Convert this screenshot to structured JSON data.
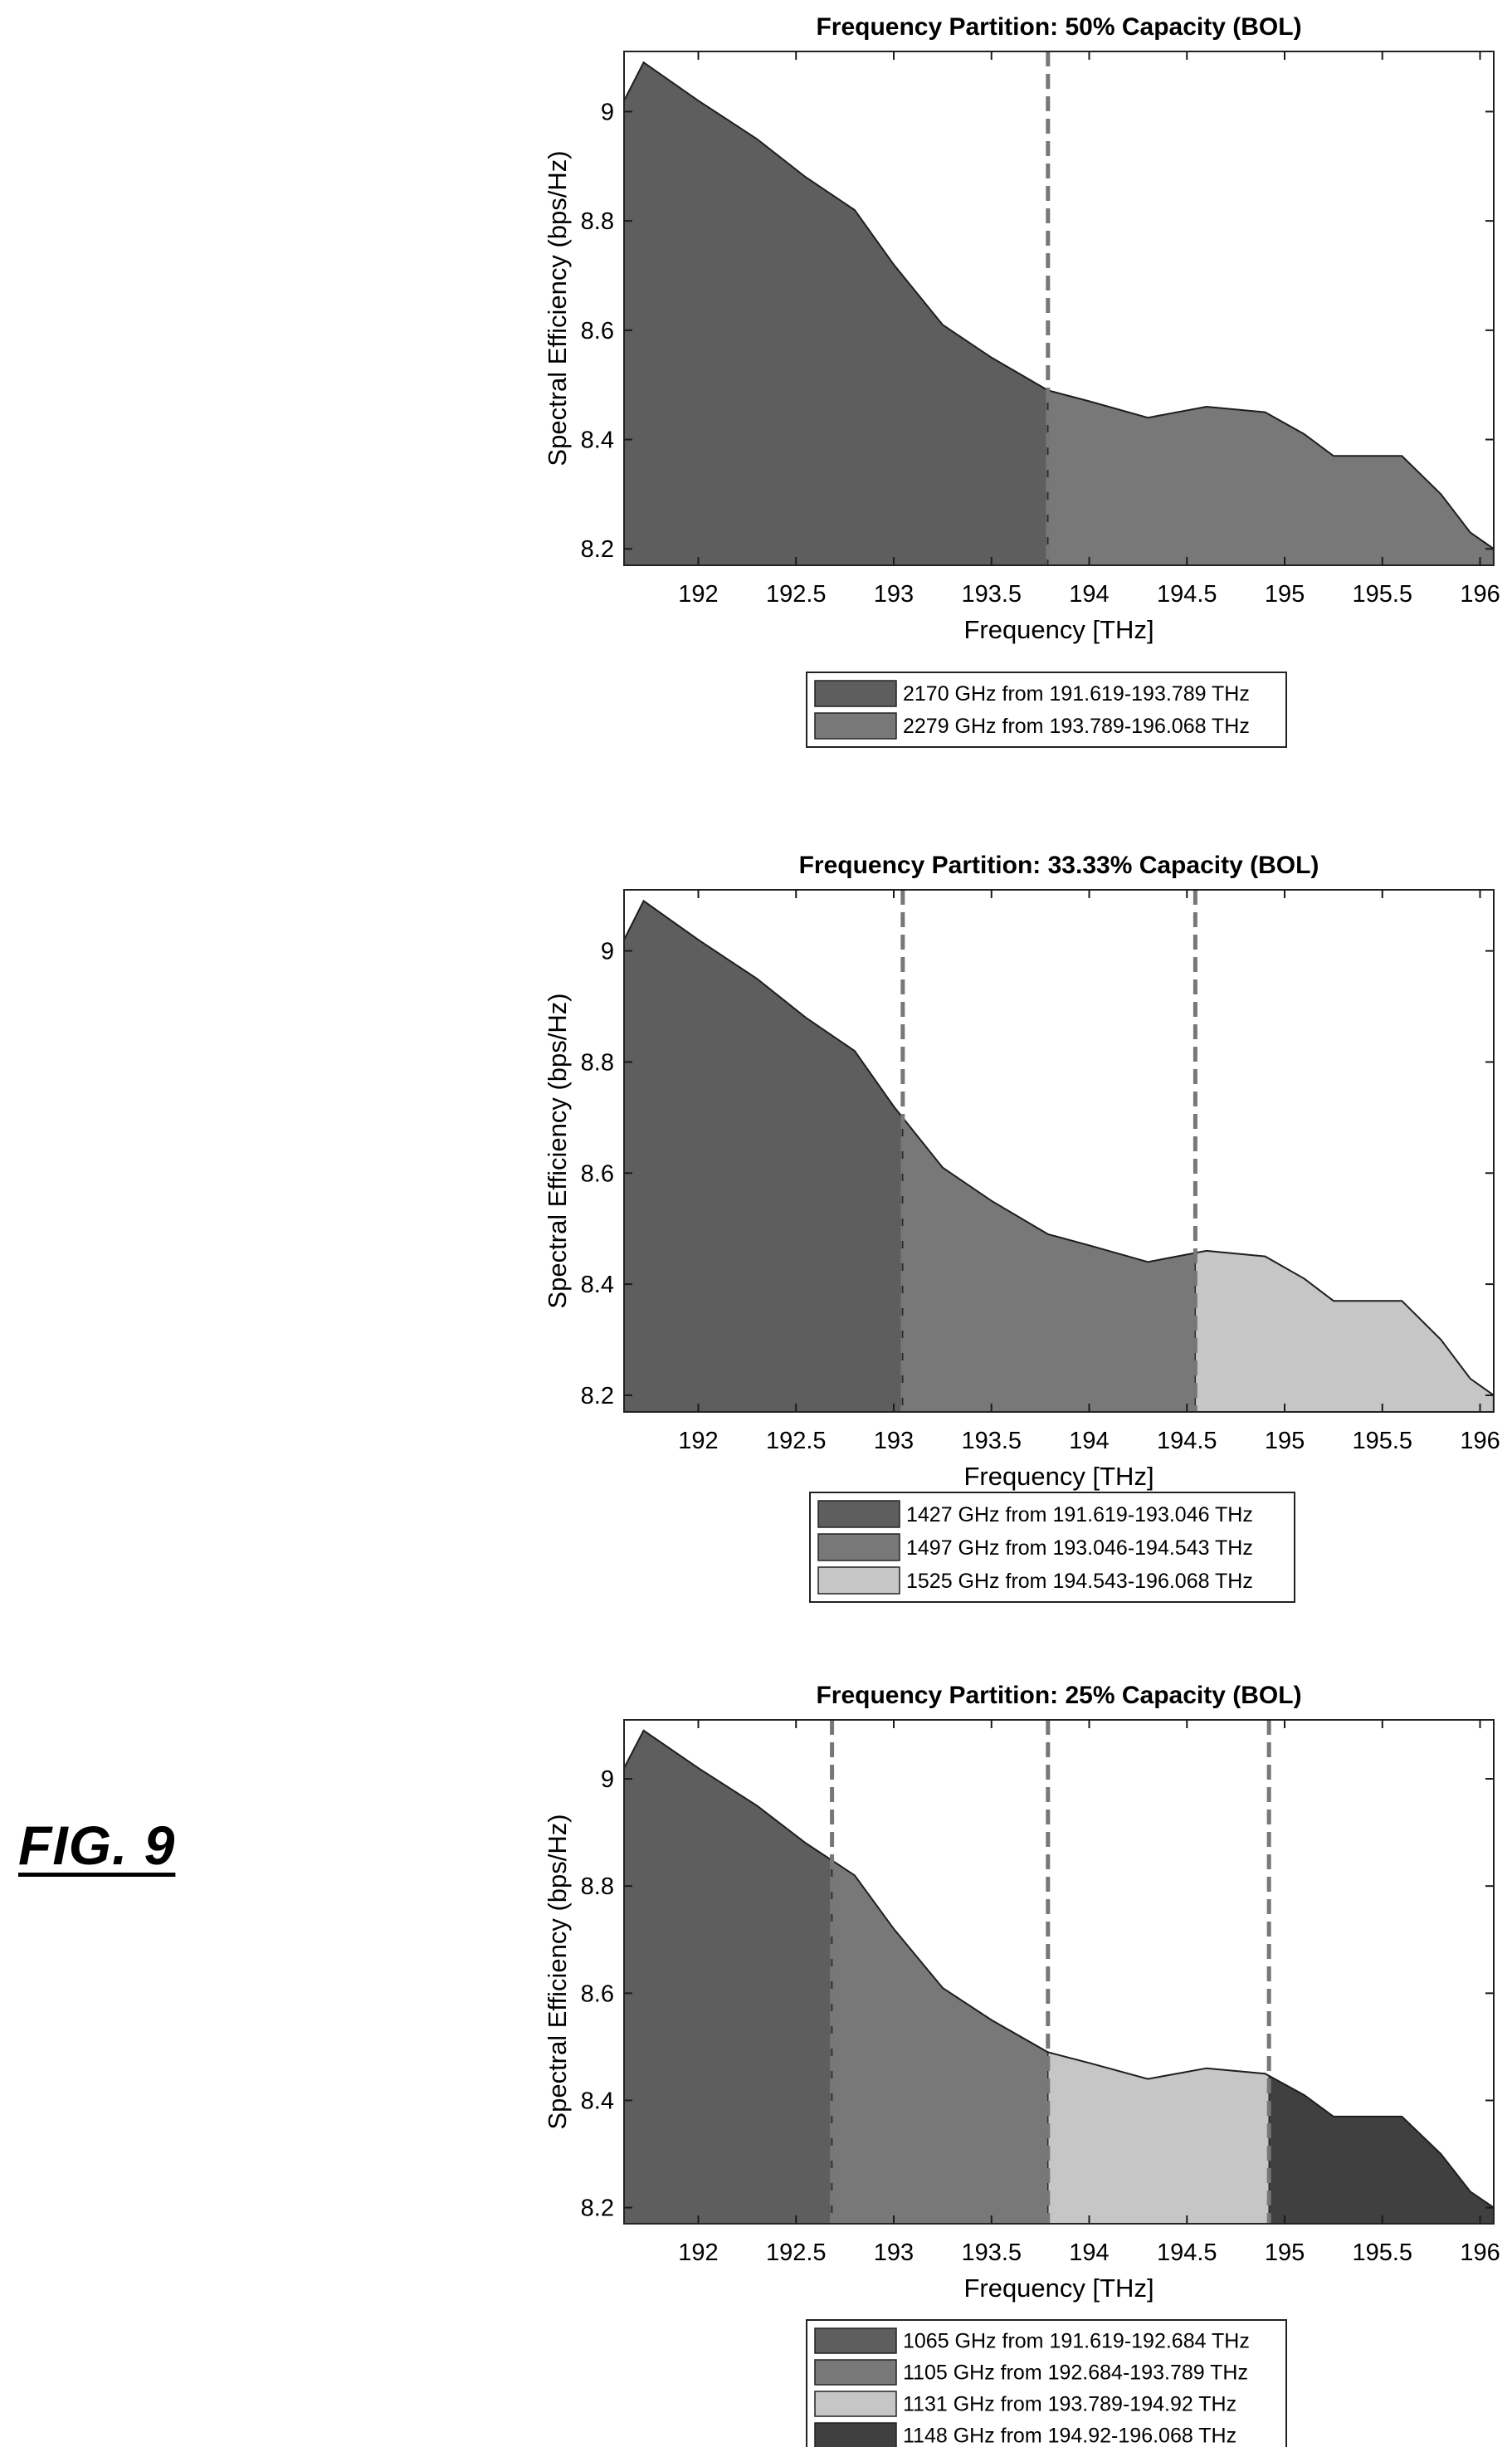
{
  "figure": {
    "label": "FIG. 9"
  },
  "colors": {
    "band_dark": "#5e5e5e",
    "band_mid": "#787878",
    "band_light": "#c6c6c6",
    "band_darkest": "#404040",
    "divider": "#777777",
    "frame": "#222222",
    "ticks": "#1a1a1a"
  },
  "chart_data": [
    {
      "type": "area",
      "title": "Frequency Partition: 50% Capacity (BOL)",
      "xlabel": "Frequency [THz]",
      "ylabel": "Spectral Efficiency (bps/Hz)",
      "xlim": [
        191.62,
        196.07
      ],
      "ylim": [
        8.17,
        9.11
      ],
      "xticks": [
        192,
        192.5,
        193,
        193.5,
        194,
        194.5,
        195,
        195.5,
        196
      ],
      "xtick_labels": [
        "192",
        "192.5",
        "193",
        "193.5",
        "194",
        "194.5",
        "195",
        "195.5",
        "196"
      ],
      "yticks": [
        8.2,
        8.4,
        8.6,
        8.8,
        9
      ],
      "ytick_labels": [
        "8.2",
        "8.4",
        "8.6",
        "8.8",
        "9"
      ],
      "grid": false,
      "legend_position": "below",
      "x": [
        191.62,
        191.72,
        192.0,
        192.3,
        192.55,
        192.8,
        193.0,
        193.25,
        193.5,
        193.789,
        194.0,
        194.3,
        194.6,
        194.9,
        195.1,
        195.25,
        195.5,
        195.6,
        195.8,
        195.95,
        196.07
      ],
      "y": [
        9.02,
        9.09,
        9.02,
        8.95,
        8.88,
        8.82,
        8.72,
        8.61,
        8.55,
        8.49,
        8.47,
        8.44,
        8.46,
        8.45,
        8.41,
        8.37,
        8.37,
        8.37,
        8.3,
        8.23,
        8.2
      ],
      "dividers": [
        193.789
      ],
      "series": [
        {
          "name": "2170 GHz from 191.619-193.789 THz",
          "x_start": 191.619,
          "x_end": 193.789,
          "color": "#5e5e5e"
        },
        {
          "name": "2279 GHz from 193.789-196.068 THz",
          "x_start": 193.789,
          "x_end": 196.068,
          "color": "#787878"
        }
      ]
    },
    {
      "type": "area",
      "title": "Frequency Partition: 33.33% Capacity (BOL)",
      "xlabel": "Frequency [THz]",
      "ylabel": "Spectral Efficiency (bps/Hz)",
      "xlim": [
        191.62,
        196.07
      ],
      "ylim": [
        8.17,
        9.11
      ],
      "xticks": [
        192,
        192.5,
        193,
        193.5,
        194,
        194.5,
        195,
        195.5,
        196
      ],
      "xtick_labels": [
        "192",
        "192.5",
        "193",
        "193.5",
        "194",
        "194.5",
        "195",
        "195.5",
        "196"
      ],
      "yticks": [
        8.2,
        8.4,
        8.6,
        8.8,
        9
      ],
      "ytick_labels": [
        "8.2",
        "8.4",
        "8.6",
        "8.8",
        "9"
      ],
      "grid": false,
      "legend_position": "below",
      "x": [
        191.62,
        191.72,
        192.0,
        192.3,
        192.55,
        192.8,
        193.0,
        193.25,
        193.5,
        193.789,
        194.0,
        194.3,
        194.6,
        194.9,
        195.1,
        195.25,
        195.5,
        195.6,
        195.8,
        195.95,
        196.07
      ],
      "y": [
        9.02,
        9.09,
        9.02,
        8.95,
        8.88,
        8.82,
        8.72,
        8.61,
        8.55,
        8.49,
        8.47,
        8.44,
        8.46,
        8.45,
        8.41,
        8.37,
        8.37,
        8.37,
        8.3,
        8.23,
        8.2
      ],
      "dividers": [
        193.046,
        194.543
      ],
      "series": [
        {
          "name": "1427 GHz from 191.619-193.046 THz",
          "x_start": 191.619,
          "x_end": 193.046,
          "color": "#5e5e5e"
        },
        {
          "name": "1497 GHz from 193.046-194.543 THz",
          "x_start": 193.046,
          "x_end": 194.543,
          "color": "#787878"
        },
        {
          "name": "1525 GHz from 194.543-196.068 THz",
          "x_start": 194.543,
          "x_end": 196.068,
          "color": "#c6c6c6"
        }
      ]
    },
    {
      "type": "area",
      "title": "Frequency Partition: 25% Capacity (BOL)",
      "xlabel": "Frequency [THz]",
      "ylabel": "Spectral Efficiency (bps/Hz)",
      "xlim": [
        191.62,
        196.07
      ],
      "ylim": [
        8.17,
        9.11
      ],
      "xticks": [
        192,
        192.5,
        193,
        193.5,
        194,
        194.5,
        195,
        195.5,
        196
      ],
      "xtick_labels": [
        "192",
        "192.5",
        "193",
        "193.5",
        "194",
        "194.5",
        "195",
        "195.5",
        "196"
      ],
      "yticks": [
        8.2,
        8.4,
        8.6,
        8.8,
        9
      ],
      "ytick_labels": [
        "8.2",
        "8.4",
        "8.6",
        "8.8",
        "9"
      ],
      "grid": false,
      "legend_position": "below",
      "x": [
        191.62,
        191.72,
        192.0,
        192.3,
        192.55,
        192.8,
        193.0,
        193.25,
        193.5,
        193.789,
        194.0,
        194.3,
        194.6,
        194.9,
        195.1,
        195.25,
        195.5,
        195.6,
        195.8,
        195.95,
        196.07
      ],
      "y": [
        9.02,
        9.09,
        9.02,
        8.95,
        8.88,
        8.82,
        8.72,
        8.61,
        8.55,
        8.49,
        8.47,
        8.44,
        8.46,
        8.45,
        8.41,
        8.37,
        8.37,
        8.37,
        8.3,
        8.23,
        8.2
      ],
      "dividers": [
        192.684,
        193.789,
        194.92
      ],
      "series": [
        {
          "name": "1065 GHz from 191.619-192.684 THz",
          "x_start": 191.619,
          "x_end": 192.684,
          "color": "#5e5e5e"
        },
        {
          "name": "1105 GHz from 192.684-193.789 THz",
          "x_start": 192.684,
          "x_end": 193.789,
          "color": "#787878"
        },
        {
          "name": "1131 GHz from 193.789-194.92 THz",
          "x_start": 193.789,
          "x_end": 194.92,
          "color": "#c6c6c6"
        },
        {
          "name": "1148 GHz from 194.92-196.068 THz",
          "x_start": 194.92,
          "x_end": 196.068,
          "color": "#404040"
        }
      ]
    }
  ]
}
